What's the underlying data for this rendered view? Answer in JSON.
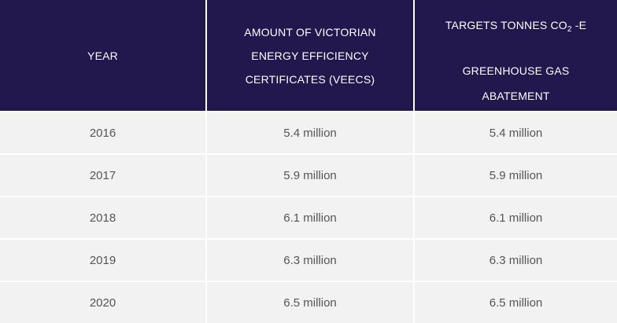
{
  "header": {
    "year": "YEAR",
    "amount_line1": "AMOUNT OF VICTORIAN",
    "amount_line2": "ENERGY EFFICIENCY",
    "amount_line3": "CERTIFICATES (VEECS)",
    "targets_prefix": "TARGETS TONNES CO",
    "targets_sub": "2",
    "targets_suffix": " -E",
    "targets_line2": "GREENHOUSE GAS",
    "targets_line3": "ABATEMENT"
  },
  "rows": [
    {
      "year": "2016",
      "amount": "5.4 million",
      "target": "5.4 million"
    },
    {
      "year": "2017",
      "amount": "5.9 million",
      "target": "5.9 million"
    },
    {
      "year": "2018",
      "amount": "6.1 million",
      "target": "6.1 million"
    },
    {
      "year": "2019",
      "amount": "6.3 million",
      "target": "6.3 million"
    },
    {
      "year": "2020",
      "amount": "6.5 million",
      "target": "6.5 million"
    }
  ],
  "colors": {
    "header_bg": "#22184e",
    "row_bg": "#f2f2f2",
    "text": "#555555"
  }
}
